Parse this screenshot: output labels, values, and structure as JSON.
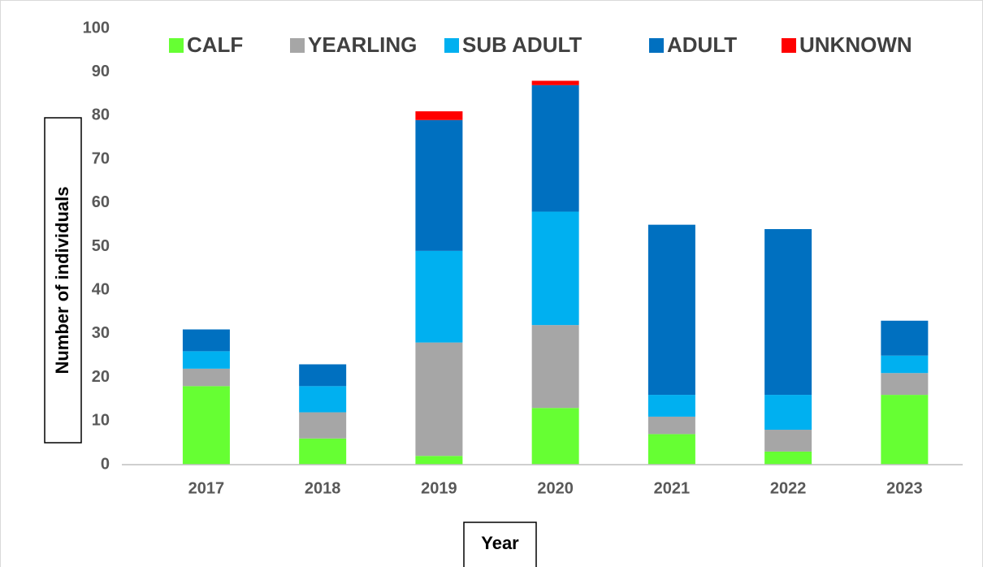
{
  "chart_data": {
    "type": "bar",
    "stacked": true,
    "x_label": "Year",
    "y_label": "Number of individuals",
    "categories": [
      "2017",
      "2018",
      "2019",
      "2020",
      "2021",
      "2022",
      "2023"
    ],
    "series": [
      {
        "name": "CALF",
        "color": "#66ff33",
        "values": [
          18,
          6,
          2,
          13,
          7,
          3,
          16
        ]
      },
      {
        "name": "YEARLING",
        "color": "#a6a6a6",
        "values": [
          4,
          6,
          26,
          19,
          4,
          5,
          5
        ]
      },
      {
        "name": "SUB ADULT",
        "color": "#00b0f0",
        "values": [
          4,
          6,
          21,
          26,
          5,
          8,
          4
        ]
      },
      {
        "name": "ADULT",
        "color": "#0070c0",
        "values": [
          5,
          5,
          30,
          29,
          39,
          38,
          8
        ]
      },
      {
        "name": "UNKNOWN",
        "color": "#ff0000",
        "values": [
          0,
          0,
          2,
          1,
          0,
          0,
          0
        ]
      }
    ],
    "ylim": [
      0,
      100
    ],
    "yticks": [
      0,
      10,
      20,
      30,
      40,
      50,
      60,
      70,
      80,
      90,
      100
    ],
    "grid": false,
    "legend": "top"
  }
}
